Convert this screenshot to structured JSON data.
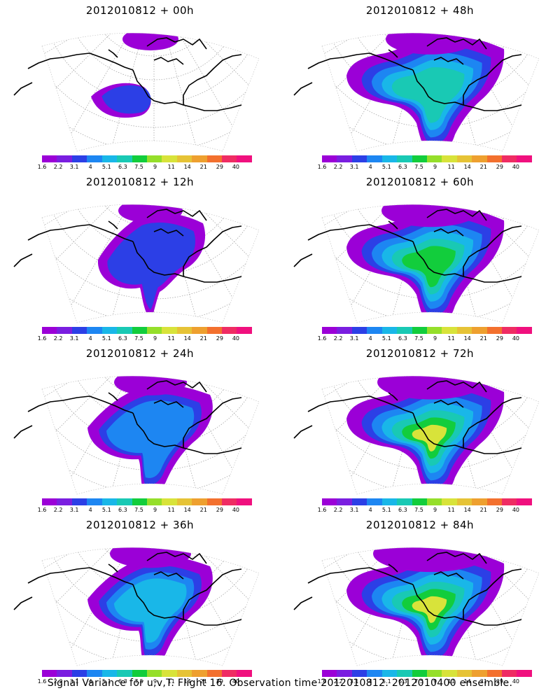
{
  "panels": [
    {
      "title": "2012010812 + 00h",
      "lead": 0
    },
    {
      "title": "2012010812 + 48h",
      "lead": 48
    },
    {
      "title": "2012010812 + 12h",
      "lead": 12
    },
    {
      "title": "2012010812 + 60h",
      "lead": 60
    },
    {
      "title": "2012010812 + 24h",
      "lead": 24
    },
    {
      "title": "2012010812 + 72h",
      "lead": 72
    },
    {
      "title": "2012010812 + 36h",
      "lead": 36
    },
    {
      "title": "2012010812 + 84h",
      "lead": 84
    }
  ],
  "colorbar": {
    "labels": [
      "1.6",
      "2.2",
      "3.1",
      "4",
      "5.1",
      "6.3",
      "7.5",
      "9",
      "11",
      "14",
      "21",
      "29",
      "40"
    ],
    "colors": [
      "#9b00d7",
      "#7a1ee0",
      "#2c3fe6",
      "#1d86f2",
      "#19b7e8",
      "#19c9b4",
      "#12cd3c",
      "#95df2a",
      "#d8e33a",
      "#e6c336",
      "#eea02f",
      "#f3702e",
      "#ef2c63",
      "#f0107e"
    ]
  },
  "footer": "Signal Variance for u,v,T. Flight 16. Observation time 2012010812. 2012010400 ensemble."
}
